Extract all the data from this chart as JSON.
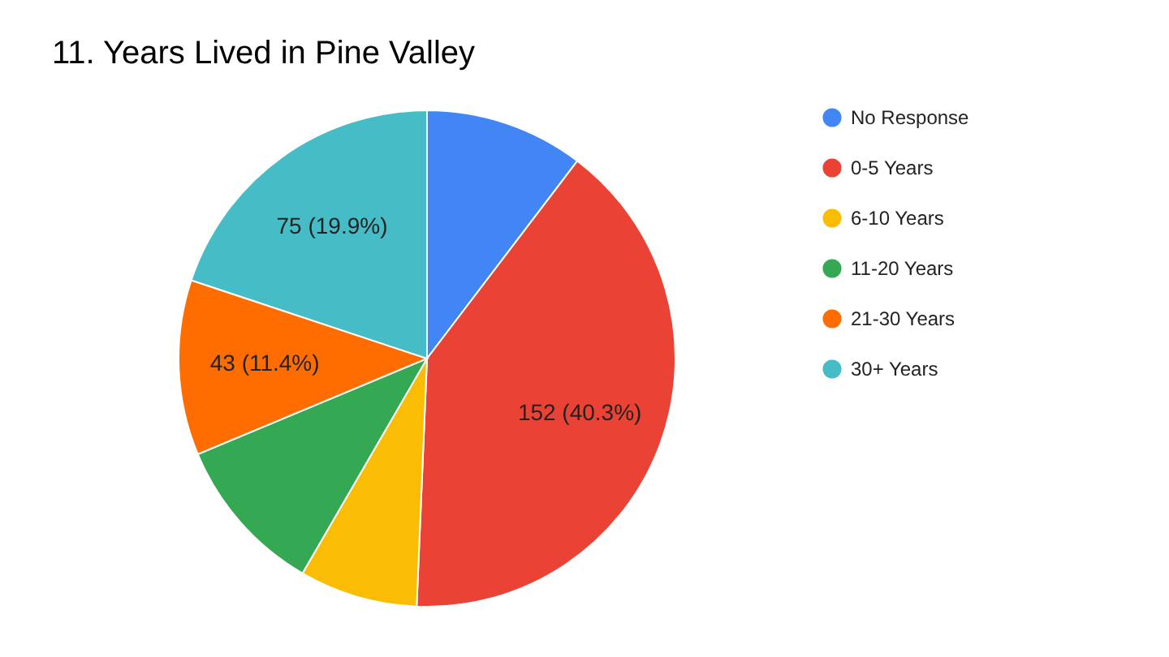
{
  "chart_data": {
    "type": "pie",
    "title": "11. Years Lived in Pine Valley",
    "categories": [
      "No Response",
      "0-5 Years",
      "6-10 Years",
      "11-20 Years",
      "21-30 Years",
      "30+ Years"
    ],
    "values": [
      39,
      152,
      29,
      39,
      43,
      75
    ],
    "colors": [
      "#4285f4",
      "#ea4335",
      "#fbbc04",
      "#34a853",
      "#ff6d01",
      "#46bdc6"
    ],
    "value_labels": [
      null,
      "152 (40.3%)",
      null,
      null,
      "43 (11.4%)",
      "75 (19.9%)"
    ],
    "legend": "right"
  }
}
